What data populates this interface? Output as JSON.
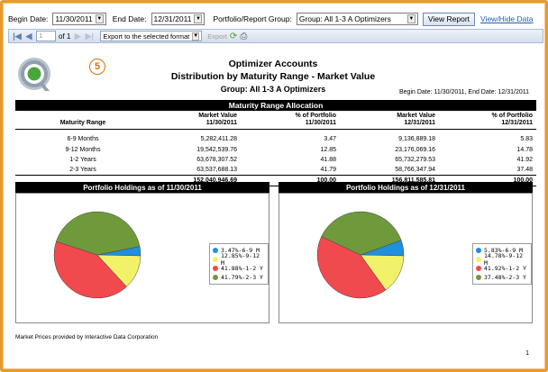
{
  "params": {
    "begin_label": "Begin Date:",
    "begin_value": "11/30/2011",
    "end_label": "End Date:",
    "end_value": "12/31/2011",
    "group_label": "Portfolio/Report Group:",
    "group_value": "Group: All 1-3 A Optimizers",
    "view_report": "View Report",
    "toggle_link": "View/Hide Data"
  },
  "toolbar": {
    "page_current": "1",
    "page_of": "of 1",
    "export_format": "Export to the selected format",
    "export_label": "Export"
  },
  "report": {
    "badge": "5",
    "title": "Optimizer Accounts",
    "subtitle": "Distribution by Maturity Range - Market Value",
    "group": "Group: All 1-3 A Optimizers",
    "date_range": "Begin Date: 11/30/2011, End Date: 12/31/2011",
    "table_title": "Maturity Range Allocation",
    "headers": {
      "range": "Maturity Range",
      "mv1": "Market Value",
      "mv1_date": "11/30/2011",
      "pct1": "% of Portfolio",
      "pct1_date": "11/30/2011",
      "mv2": "Market Value",
      "mv2_date": "12/31/2011",
      "pct2": "% of Portfolio",
      "pct2_date": "12/31/2011"
    },
    "rows": [
      {
        "range": "6-9 Months",
        "mv1": "5,282,411.28",
        "pct1": "3.47",
        "mv2": "9,136,889.18",
        "pct2": "5.83"
      },
      {
        "range": "9-12 Months",
        "mv1": "19,542,539.76",
        "pct1": "12.85",
        "mv2": "23,176,069.16",
        "pct2": "14.78"
      },
      {
        "range": "1-2 Years",
        "mv1": "63,678,307.52",
        "pct1": "41.88",
        "mv2": "65,732,279.53",
        "pct2": "41.92"
      },
      {
        "range": "2-3 Years",
        "mv1": "63,537,688.13",
        "pct1": "41.79",
        "mv2": "58,766,347.94",
        "pct2": "37.48"
      }
    ],
    "totals": {
      "mv1": "152,040,946.69",
      "pct1": "100.00",
      "mv2": "156,811,585.81",
      "pct2": "100.00"
    },
    "footnote": "Market Prices provided by Interactive Data Corporation",
    "page_number": "1"
  },
  "colors": {
    "frame": "#e69a2e",
    "slice_6_9": "#1f8fe0",
    "slice_9_12": "#f2f26a",
    "slice_1_2": "#f0494e",
    "slice_2_3": "#6f9a3c"
  },
  "chart_data": [
    {
      "type": "pie",
      "title": "Portfolio Holdings as of 11/30/2011",
      "categories": [
        "6-9 M",
        "9-12 M",
        "1-2 Y",
        "2-3 Y"
      ],
      "values": [
        3.47,
        12.85,
        41.88,
        41.79
      ],
      "legend": [
        "3.47%-6-9 M",
        "12.85%-9-12 M",
        "41.88%-1-2 Y",
        "41.79%-2-3 Y"
      ],
      "legend_position": "right"
    },
    {
      "type": "pie",
      "title": "Portfolio Holdings as of 12/31/2011",
      "categories": [
        "6-9 M",
        "9-12 M",
        "1-2 Y",
        "2-3 Y"
      ],
      "values": [
        5.83,
        14.78,
        41.92,
        37.48
      ],
      "legend": [
        "5.83%-6-9 M",
        "14.78%-9-12 M",
        "41.92%-1-2 Y",
        "37.48%-2-3 Y"
      ],
      "legend_position": "right"
    }
  ]
}
